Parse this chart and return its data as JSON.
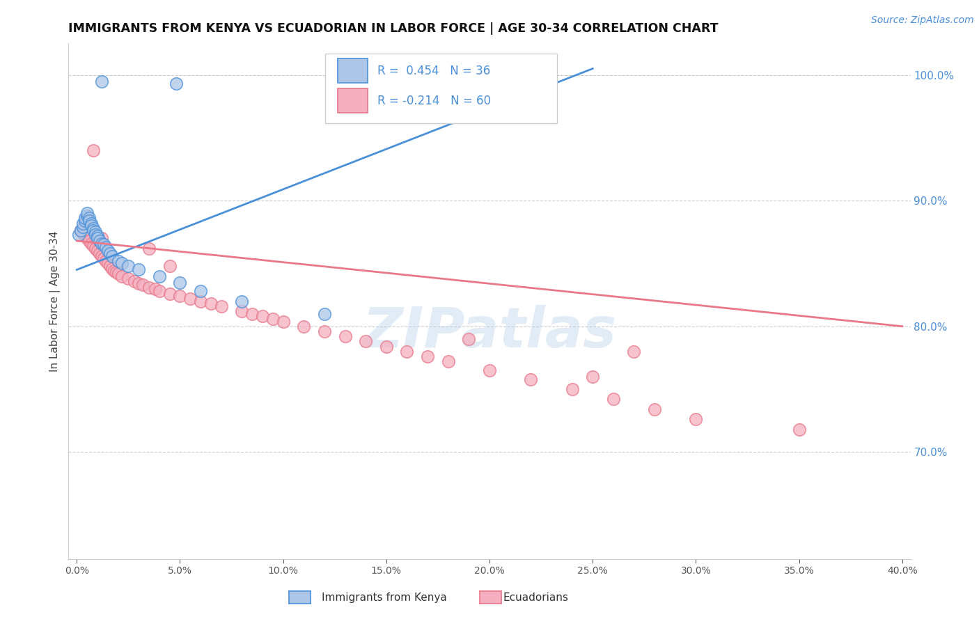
{
  "title": "IMMIGRANTS FROM KENYA VS ECUADORIAN IN LABOR FORCE | AGE 30-34 CORRELATION CHART",
  "source": "Source: ZipAtlas.com",
  "ylabel": "In Labor Force | Age 30-34",
  "xlim": [
    -0.004,
    0.404
  ],
  "ylim": [
    0.615,
    1.025
  ],
  "xticks": [
    0.0,
    0.05,
    0.1,
    0.15,
    0.2,
    0.25,
    0.3,
    0.35,
    0.4
  ],
  "yticks_right": [
    1.0,
    0.9,
    0.8,
    0.7
  ],
  "kenya_color": "#adc6e8",
  "kenya_line_color": "#4a90d9",
  "ecuador_color": "#f5afc0",
  "ecuador_line_color": "#e8788a",
  "kenya_R": 0.454,
  "kenya_N": 36,
  "ecuador_R": -0.214,
  "ecuador_N": 60,
  "watermark_text": "ZIPatlas",
  "background_color": "#ffffff",
  "grid_color": "#cccccc",
  "kenya_x": [
    0.012,
    0.048,
    0.001,
    0.002,
    0.003,
    0.003,
    0.004,
    0.004,
    0.005,
    0.005,
    0.006,
    0.006,
    0.007,
    0.007,
    0.008,
    0.008,
    0.009,
    0.009,
    0.01,
    0.01,
    0.011,
    0.012,
    0.013,
    0.014,
    0.015,
    0.016,
    0.017,
    0.02,
    0.022,
    0.025,
    0.03,
    0.04,
    0.05,
    0.06,
    0.08,
    0.12
  ],
  "kenya_y": [
    0.995,
    0.993,
    0.873,
    0.876,
    0.879,
    0.882,
    0.884,
    0.886,
    0.888,
    0.89,
    0.886,
    0.884,
    0.882,
    0.88,
    0.878,
    0.876,
    0.875,
    0.873,
    0.872,
    0.87,
    0.868,
    0.866,
    0.865,
    0.863,
    0.86,
    0.858,
    0.856,
    0.852,
    0.85,
    0.848,
    0.845,
    0.84,
    0.835,
    0.828,
    0.82,
    0.81
  ],
  "ecuador_x": [
    0.002,
    0.003,
    0.004,
    0.005,
    0.006,
    0.007,
    0.008,
    0.009,
    0.01,
    0.011,
    0.012,
    0.013,
    0.014,
    0.015,
    0.016,
    0.017,
    0.018,
    0.019,
    0.02,
    0.022,
    0.025,
    0.028,
    0.03,
    0.032,
    0.035,
    0.038,
    0.04,
    0.045,
    0.05,
    0.055,
    0.06,
    0.065,
    0.07,
    0.08,
    0.085,
    0.09,
    0.095,
    0.1,
    0.11,
    0.12,
    0.13,
    0.14,
    0.15,
    0.16,
    0.17,
    0.18,
    0.2,
    0.22,
    0.24,
    0.26,
    0.28,
    0.3,
    0.35,
    0.008,
    0.012,
    0.035,
    0.045,
    0.19,
    0.25,
    0.27
  ],
  "ecuador_y": [
    0.876,
    0.874,
    0.872,
    0.87,
    0.868,
    0.866,
    0.864,
    0.862,
    0.86,
    0.858,
    0.856,
    0.854,
    0.852,
    0.85,
    0.848,
    0.846,
    0.844,
    0.843,
    0.842,
    0.84,
    0.838,
    0.836,
    0.834,
    0.833,
    0.831,
    0.83,
    0.828,
    0.826,
    0.824,
    0.822,
    0.82,
    0.818,
    0.816,
    0.812,
    0.81,
    0.808,
    0.806,
    0.804,
    0.8,
    0.796,
    0.792,
    0.788,
    0.784,
    0.78,
    0.776,
    0.772,
    0.765,
    0.758,
    0.75,
    0.742,
    0.734,
    0.726,
    0.718,
    0.94,
    0.87,
    0.862,
    0.848,
    0.79,
    0.76,
    0.78
  ],
  "kenya_trendline_x": [
    0.0,
    0.25
  ],
  "kenya_trendline_y": [
    0.845,
    1.005
  ],
  "ecuador_trendline_x": [
    0.0,
    0.4
  ],
  "ecuador_trendline_y": [
    0.868,
    0.8
  ]
}
